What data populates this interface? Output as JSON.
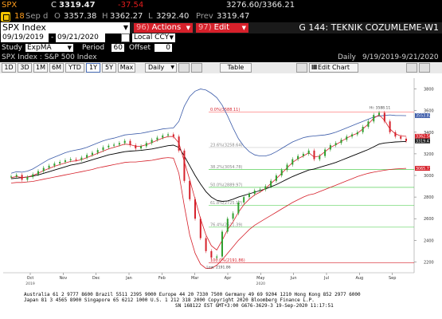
{
  "ticker": {
    "symbol": "SPX",
    "c_label": "C",
    "last": "3319.47",
    "change": "-37.54",
    "bid_ask": "3276.60/3366.21",
    "sub_icon": "security-icon",
    "sub_num": "18",
    "date": "Sep d",
    "o_label": "O",
    "open": "3357.38",
    "h_label": "H",
    "high": "3362.27",
    "l_label": "L",
    "low": "3292.40",
    "prev_label": "Prev",
    "prev": "3319.47"
  },
  "titlebar": {
    "security": "SPX Index",
    "actions_num": "96)",
    "actions": "Actions",
    "edit_num": "97)",
    "edit": "Edit",
    "page_title": "G 144: TEKNIK COZUMLEME-W1"
  },
  "range": {
    "start": "09/19/2019",
    "end": "09/21/2020",
    "currency": "Local CCY"
  },
  "study": {
    "label": "Study",
    "value": "ExpMA",
    "period_label": "Period",
    "period": "60",
    "offset_label": "Offset",
    "offset": "0"
  },
  "chart_header": {
    "left": "SPX Index : S&P 500 Index",
    "freq": "Daily",
    "range": "9/19/2019-9/21/2020"
  },
  "toolbar": {
    "periods": [
      "1D",
      "3D",
      "1M",
      "6M",
      "YTD",
      "1Y",
      "5Y",
      "Max"
    ],
    "active_period": "1Y",
    "freq": "Daily",
    "table": "Table",
    "edit_chart": "Edit Chart"
  },
  "chart_data": {
    "type": "line",
    "series_type": "candlestick",
    "x_ticks": [
      "Oct",
      "Nov",
      "Dec",
      "Jan",
      "Feb",
      "Mar",
      "Apr",
      "May",
      "Jun",
      "Jul",
      "Aug",
      "Sep"
    ],
    "year_labels": [
      "2019",
      "2020"
    ],
    "y_ticks": [
      2200,
      2400,
      2600,
      2800,
      3000,
      3200,
      3400,
      3600,
      3800
    ],
    "ylim": [
      2100,
      3900
    ],
    "fib_levels": [
      {
        "label": "0.0%(3588.11)",
        "value": 3588.11
      },
      {
        "label": "23.6%(3258.64)",
        "value": 3258.64
      },
      {
        "label": "38.2%(3054.78)",
        "value": 3054.78
      },
      {
        "label": "50.0%(2889.97)",
        "value": 2889.97
      },
      {
        "label": "61.8%(2725.17)",
        "value": 2725.17
      },
      {
        "label": "76.4%(2521.39)",
        "value": 2521.39
      },
      {
        "label": "100.0%(2191.86)",
        "value": 2191.86
      }
    ],
    "hi_label": "Hi: 3588.11",
    "low_label": "Low: 2191.86",
    "right_badges": [
      {
        "text": "3553.82",
        "value": 3553.82,
        "color": "#3b5ba9"
      },
      {
        "text": "3362.50",
        "value": 3362.5,
        "color": "#d6202a"
      },
      {
        "text": "3319.47",
        "value": 3319.47,
        "color": "#1a1a1a"
      },
      {
        "text": "3065.71",
        "value": 3065.71,
        "color": "#d6202a"
      }
    ],
    "series": [
      {
        "name": "close",
        "color": "#000000",
        "values": [
          2990,
          3005,
          2960,
          2985,
          3010,
          3040,
          3070,
          3090,
          3110,
          3125,
          3140,
          3150,
          3145,
          3165,
          3190,
          3210,
          3235,
          3260,
          3275,
          3285,
          3300,
          3320,
          3280,
          3250,
          3270,
          3300,
          3330,
          3350,
          3370,
          3380,
          3360,
          3230,
          2950,
          2780,
          2600,
          2420,
          2300,
          2240,
          2250,
          2480,
          2600,
          2650,
          2750,
          2800,
          2830,
          2860,
          2870,
          2900,
          2950,
          3000,
          3050,
          3100,
          3150,
          3180,
          3200,
          3230,
          3150,
          3180,
          3240,
          3280,
          3300,
          3330,
          3360,
          3380,
          3400,
          3450,
          3500,
          3560,
          3580,
          3500,
          3400,
          3360,
          3340,
          3319
        ]
      },
      {
        "name": "upper-band",
        "color": "#3b5ba9",
        "values": [
          3020,
          3035,
          3030,
          3040,
          3060,
          3090,
          3120,
          3150,
          3170,
          3190,
          3210,
          3225,
          3235,
          3245,
          3260,
          3280,
          3300,
          3320,
          3335,
          3345,
          3360,
          3375,
          3380,
          3385,
          3390,
          3400,
          3410,
          3420,
          3430,
          3435,
          3440,
          3500,
          3640,
          3730,
          3780,
          3800,
          3790,
          3760,
          3720,
          3650,
          3550,
          3440,
          3340,
          3270,
          3220,
          3190,
          3180,
          3180,
          3195,
          3220,
          3250,
          3280,
          3310,
          3330,
          3350,
          3360,
          3365,
          3370,
          3375,
          3385,
          3400,
          3420,
          3440,
          3460,
          3480,
          3500,
          3520,
          3540,
          3550,
          3555,
          3560,
          3555,
          3554,
          3553
        ]
      },
      {
        "name": "middle-ema",
        "color": "#000000",
        "values": [
          2970,
          2975,
          2980,
          2985,
          2995,
          3005,
          3020,
          3035,
          3050,
          3065,
          3080,
          3095,
          3105,
          3115,
          3130,
          3145,
          3160,
          3175,
          3190,
          3200,
          3210,
          3220,
          3225,
          3228,
          3232,
          3238,
          3245,
          3255,
          3265,
          3275,
          3280,
          3260,
          3180,
          3090,
          3000,
          2920,
          2850,
          2800,
          2770,
          2760,
          2765,
          2780,
          2800,
          2815,
          2830,
          2845,
          2860,
          2875,
          2895,
          2915,
          2940,
          2965,
          2990,
          3010,
          3030,
          3050,
          3060,
          3075,
          3090,
          3105,
          3120,
          3140,
          3160,
          3180,
          3200,
          3220,
          3240,
          3265,
          3290,
          3300,
          3305,
          3310,
          3312,
          3314
        ]
      },
      {
        "name": "lower-band",
        "color": "#d6202a",
        "values": [
          2930,
          2935,
          2935,
          2940,
          2945,
          2955,
          2965,
          2975,
          2985,
          2995,
          3005,
          3015,
          3025,
          3035,
          3045,
          3055,
          3070,
          3080,
          3090,
          3100,
          3110,
          3120,
          3125,
          3125,
          3130,
          3135,
          3140,
          3150,
          3160,
          3165,
          3160,
          3020,
          2720,
          2450,
          2280,
          2180,
          2140,
          2140,
          2170,
          2220,
          2280,
          2340,
          2400,
          2450,
          2500,
          2540,
          2570,
          2600,
          2630,
          2660,
          2690,
          2720,
          2750,
          2775,
          2800,
          2820,
          2830,
          2850,
          2870,
          2890,
          2910,
          2930,
          2950,
          2970,
          2990,
          3005,
          3020,
          3030,
          3040,
          3048,
          3055,
          3060,
          3063,
          3066
        ]
      },
      {
        "name": "ema-red",
        "color": "#d6202a",
        "values": [
          2980,
          2990,
          2980,
          2985,
          3000,
          3020,
          3045,
          3065,
          3085,
          3100,
          3115,
          3130,
          3135,
          3145,
          3165,
          3185,
          3205,
          3225,
          3245,
          3260,
          3275,
          3290,
          3285,
          3270,
          3270,
          3285,
          3305,
          3325,
          3345,
          3360,
          3360,
          3300,
          3130,
          2960,
          2780,
          2600,
          2450,
          2350,
          2310,
          2400,
          2500,
          2570,
          2660,
          2730,
          2780,
          2820,
          2845,
          2880,
          2925,
          2970,
          3020,
          3070,
          3120,
          3155,
          3180,
          3210,
          3170,
          3180,
          3220,
          3260,
          3285,
          3315,
          3345,
          3370,
          3390,
          3430,
          3475,
          3530,
          3560,
          3510,
          3430,
          3385,
          3365,
          3362
        ]
      }
    ]
  },
  "footer": {
    "line1": "Australia 61 2 9777 8600 Brazil 5511 2395 9000 Europe 44 20 7330 7500 Germany 49 69 9204 1210 Hong Kong 852 2977 6000",
    "line2": "Japan 81 3 4565 8900              Singapore 65 6212 1000       U.S. 1 212 318 2000           Copyright 2020 Bloomberg Finance L.P.",
    "line3": "SN 168122 EST GMT+3:00 G676-3629-3 19-Sep-2020 11:17:51"
  }
}
